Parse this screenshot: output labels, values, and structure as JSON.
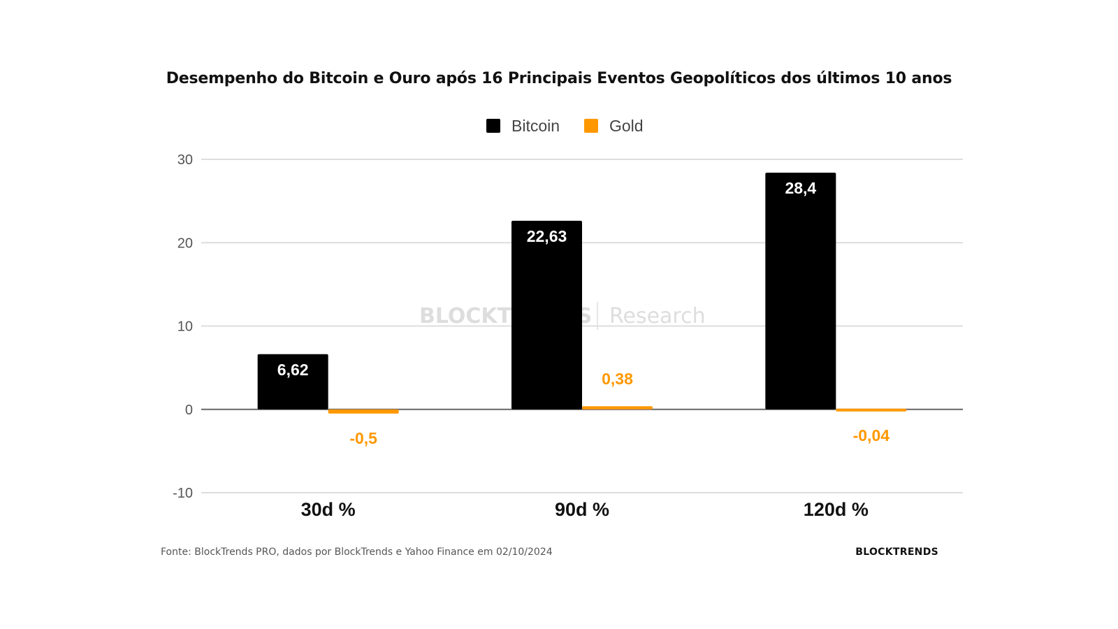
{
  "chart_data": {
    "type": "bar",
    "title": "Desempenho do Bitcoin e Ouro após 16 Principais Eventos Geopolíticos dos últimos 10 anos",
    "categories": [
      "30d %",
      "90d %",
      "120d %"
    ],
    "series": [
      {
        "name": "Bitcoin",
        "color": "#000000",
        "values": [
          6.62,
          22.63,
          28.4
        ],
        "labels": [
          "6,62",
          "22,63",
          "28,4"
        ]
      },
      {
        "name": "Gold",
        "color": "#ff9800",
        "values": [
          -0.5,
          0.38,
          -0.04
        ],
        "labels": [
          "-0,5",
          "0,38",
          "-0,04"
        ]
      }
    ],
    "yticks": [
      30,
      20,
      10,
      0,
      -10
    ],
    "ylim": [
      -10,
      30
    ],
    "grid": true,
    "legend": "top-center",
    "xlabel": "",
    "ylabel": ""
  },
  "watermark": {
    "brand": "BLOCKTRENDS",
    "suffix": "Research"
  },
  "footer": {
    "source": "Fonte: BlockTrends PRO, dados por BlockTrends e Yahoo Finance em 02/10/2024",
    "brand": "BLOCKTRENDS"
  },
  "colors": {
    "grid": "#dddddd",
    "zero_line": "#666666",
    "axis_text": "#555555"
  }
}
